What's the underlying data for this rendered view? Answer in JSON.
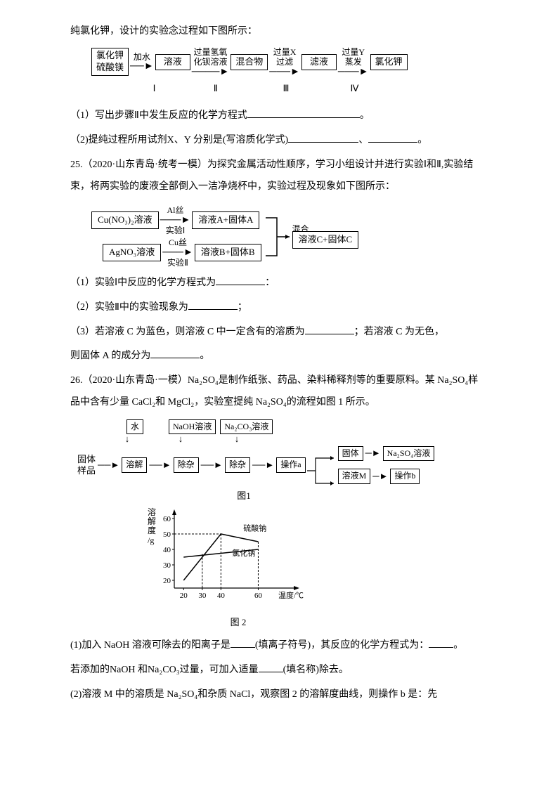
{
  "intro": "纯氯化钾，设计的实验念过程如下图所示：",
  "d1": {
    "start": [
      "氯化钾",
      "硫酸镁"
    ],
    "arr1": "加水",
    "mid1": "溶液",
    "arr2": [
      "过量氢氧",
      "化钡溶液"
    ],
    "mid2": "混合物",
    "arr3": [
      "过量X",
      "过滤"
    ],
    "mid3": "滤液",
    "arr4": [
      "过量Y",
      "蒸发"
    ],
    "end": "氯化钾",
    "stages": [
      "Ⅰ",
      "Ⅱ",
      "Ⅲ",
      "Ⅳ"
    ]
  },
  "q24_1": "（1）写出步骤Ⅱ中发生反应的化学方程式",
  "q24_1_end": "。",
  "q24_2": "（2)提纯过程所用试剂X、Y 分别是(写溶质化学式)",
  "q24_2_sep": "、",
  "q24_2_end": "。",
  "q25_intro": "25.（2020·山东青岛·统考一模）为探究金属活动性顺序，学习小组设计并进行实验Ⅰ和Ⅱ,实验结束，将两实验的废液全部倒入一洁净烧杯中，实验过程及现象如下图所示：",
  "d2": {
    "left_top": "Cu(NO₃)₂溶液",
    "arr_top": "Al丝",
    "arr_top_sub": "实验Ⅰ",
    "right_top": "溶液A+固体A",
    "left_bot": "AgNO₃溶液",
    "arr_bot": "Cu丝",
    "arr_bot_sub": "实验Ⅱ",
    "right_bot": "溶液B+固体B",
    "merge": "混合",
    "result": "溶液C+固体C"
  },
  "q25_1": "（1）实验Ⅰ中反应的化学方程式为",
  "q25_1_end": "：",
  "q25_2": "（2）实验Ⅱ中的实验现象为",
  "q25_2_end": "；",
  "q25_3a": "（3）若溶液 C 为蓝色，则溶液 C 中一定含有的溶质为",
  "q25_3b": "；若溶液 C 为无色，",
  "q25_3c": "则固体 A 的成分为",
  "q25_3d": "。",
  "q26_intro": "26.（2020·山东青岛·一模）Na₂SO₄是制作纸张、药品、染料稀释剂等的重要原料。某 Na₂SO₄样品中含有少量 CaCl₂和 MgCl₂，实验室提纯 Na₂SO₄的流程如图 1 所示。",
  "d3": {
    "reagent1": "水",
    "reagent2": "NaOH溶液",
    "reagent3": "Na₂CO₃溶液",
    "sample_label": "固体样品",
    "s1": "溶解",
    "s2": "除杂",
    "s3": "除杂",
    "s4": "操作a",
    "out1": "固体",
    "out1_next": "Na₂SO₄溶液",
    "out2": "溶液M",
    "out2_next": "操作b",
    "fig1": "图1",
    "fig2": "图 2"
  },
  "chart": {
    "y_label": [
      "溶",
      "解",
      "度",
      "/g"
    ],
    "y_ticks": [
      20,
      30,
      40,
      50,
      60
    ],
    "x_ticks": [
      20,
      30,
      40,
      60
    ],
    "x_label": "温度/℃",
    "series1_name": "硫酸钠",
    "series2_name": "氯化钠",
    "series1": [
      [
        20,
        20
      ],
      [
        40,
        50
      ],
      [
        60,
        45
      ]
    ],
    "series2": [
      [
        20,
        35
      ],
      [
        60,
        40
      ]
    ],
    "xlim": [
      15,
      70
    ],
    "ylim": [
      15,
      65
    ],
    "axis_color": "#000",
    "line_width": 1.5
  },
  "q26_1a": "(1)加入 NaOH 溶液可除去的阳离子是",
  "q26_1b": "(填离子符号)，其反应的化学方程式为：",
  "q26_1c": "。",
  "q26_1d": "若添加的NaOH 和Na₂CO₃过量，可加入适量",
  "q26_1e": "(填名称)除去。",
  "q26_2": "(2)溶液 M 中的溶质是 Na₂SO₄和杂质 NaCl，观察图 2 的溶解度曲线，则操作 b 是：先"
}
